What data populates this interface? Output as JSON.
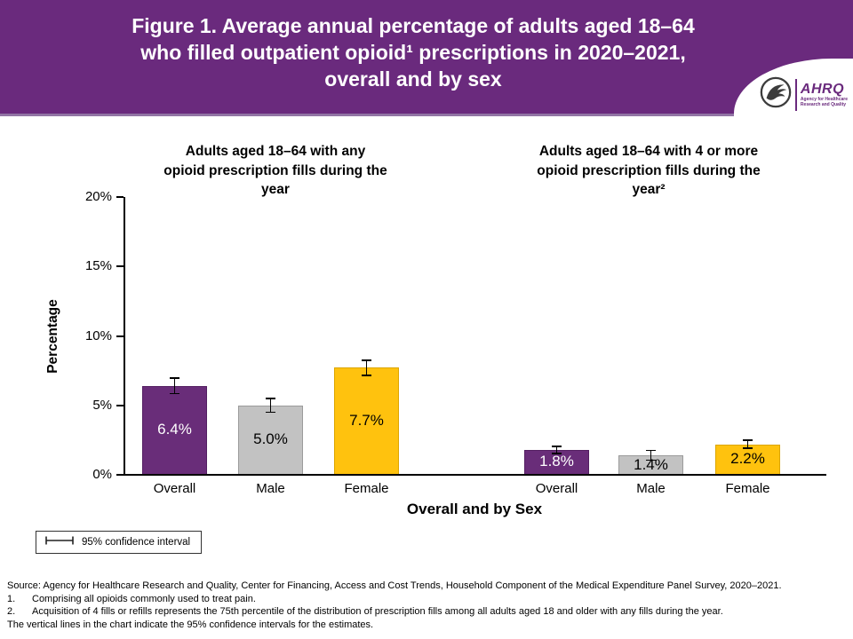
{
  "header": {
    "title_lines": [
      "Figure 1. Average annual percentage of adults aged 18–64",
      "who filled outpatient opioid¹ prescriptions in 2020–2021,",
      "overall and by sex"
    ],
    "logo": {
      "acronym": "AHRQ",
      "agency_lines": [
        "Agency for Healthcare",
        "Research and Quality"
      ]
    },
    "banner_color": "#6a2a7d"
  },
  "chart_data": {
    "type": "bar",
    "title": "Figure 1. Average annual percentage of adults aged 18–64 who filled outpatient opioid¹ prescriptions in 2020–2021, overall and by sex",
    "ylabel": "Percentage",
    "xlabel": "Overall and by Sex",
    "ylim": [
      0,
      20
    ],
    "ytick_values": [
      0,
      5,
      10,
      15,
      20
    ],
    "yticks": [
      "0%",
      "5%",
      "10%",
      "15%",
      "20%"
    ],
    "grid": "off",
    "legend": "95% confidence interval",
    "legend_position": "bottom-left",
    "bar_colors": [
      "#692d79",
      "#c2c2c2",
      "#ffc20e"
    ],
    "bar_border_colors": [
      "#541f62",
      "#9b9b9b",
      "#dca500"
    ],
    "label_colors": [
      "#ffffff",
      "#000000",
      "#000000"
    ],
    "groups": [
      {
        "subtitle_lines": [
          "Adults aged 18–64 with any",
          "opioid prescription fills during the",
          "year"
        ],
        "subtitle": "Adults aged 18–64 with any opioid prescription fills during the year",
        "categories": [
          "Overall",
          "Male",
          "Female"
        ],
        "values": [
          6.4,
          5.0,
          7.7
        ],
        "labels": [
          "6.4%",
          "5.0%",
          "7.7%"
        ],
        "ci": [
          0.55,
          0.5,
          0.55
        ]
      },
      {
        "subtitle_lines": [
          "Adults aged 18–64 with 4 or more",
          "opioid prescription fills during the",
          "year²"
        ],
        "subtitle": "Adults aged 18–64 with 4 or more opioid prescription fills during the year²",
        "categories": [
          "Overall",
          "Male",
          "Female"
        ],
        "values": [
          1.8,
          1.4,
          2.2
        ],
        "labels": [
          "1.8%",
          "1.4%",
          "2.2%"
        ],
        "ci": [
          0.25,
          0.35,
          0.3
        ]
      }
    ]
  },
  "footer": {
    "source": "Source: Agency for Healthcare Research and Quality, Center for Financing, Access and Cost Trends, Household Component of the Medical Expenditure Panel Survey, 2020–2021.",
    "notes": [
      {
        "num": "1.",
        "text": "Comprising all opioids commonly used to treat pain."
      },
      {
        "num": "2.",
        "text": "Acquisition of 4 fills or refills represents the 75th percentile of the distribution of prescription fills among all adults aged 18 and older with any fills during the year."
      }
    ],
    "ci_note": "The vertical lines in the chart indicate the 95% confidence intervals for the estimates."
  }
}
